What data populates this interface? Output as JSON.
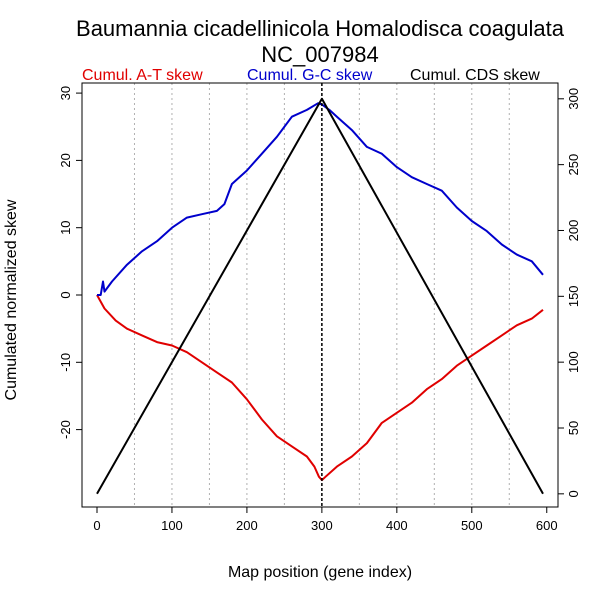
{
  "chart_data": {
    "type": "line",
    "title_line1": "Baumannia cicadellinicola Homalodisca coagulata",
    "title_line2": "NC_007984",
    "xlabel": "Map position (gene index)",
    "ylabel": "Cumulated normalized skew",
    "xlim": [
      -20,
      615
    ],
    "ylim_left": [
      -31.5,
      31.5
    ],
    "ylim_right": [
      -10,
      312
    ],
    "x_ticks": [
      0,
      100,
      200,
      300,
      400,
      500,
      600
    ],
    "y_left_ticks": [
      -20,
      -10,
      0,
      10,
      20,
      30
    ],
    "y_right_ticks": [
      0,
      50,
      100,
      150,
      200,
      250,
      300
    ],
    "vertical_gridlines": [
      50,
      100,
      150,
      200,
      250,
      300,
      350,
      400,
      450,
      500,
      550
    ],
    "grid_style": "dotted gray vertical",
    "legend": [
      {
        "label": "Cumul. A-T skew",
        "color": "#e00000"
      },
      {
        "label": "Cumul. G-C skew",
        "color": "#0000cc"
      },
      {
        "label": "Cumul. CDS skew",
        "color": "#000000"
      }
    ],
    "marker_line_x": 300,
    "series": [
      {
        "name": "Cumul. A-T skew",
        "color": "#e00000",
        "axis": "left",
        "x": [
          0,
          10,
          25,
          40,
          60,
          80,
          100,
          120,
          140,
          160,
          180,
          200,
          220,
          240,
          260,
          280,
          290,
          296,
          300,
          305,
          320,
          340,
          360,
          380,
          400,
          420,
          440,
          460,
          480,
          500,
          520,
          540,
          560,
          580,
          595
        ],
        "y": [
          0,
          -2,
          -3.8,
          -5,
          -6,
          -7,
          -7.5,
          -8.5,
          -10,
          -11.5,
          -13,
          -15.5,
          -18.5,
          -21,
          -22.5,
          -24,
          -25.5,
          -27,
          -27.5,
          -27,
          -25.5,
          -24,
          -22,
          -19,
          -17.5,
          -16,
          -14,
          -12.5,
          -10.5,
          -9,
          -7.5,
          -6,
          -4.5,
          -3.5,
          -2.2
        ]
      },
      {
        "name": "Cumul. G-C skew",
        "color": "#0000cc",
        "axis": "left",
        "x": [
          0,
          5,
          8,
          10,
          20,
          40,
          60,
          80,
          100,
          120,
          140,
          160,
          170,
          180,
          200,
          220,
          240,
          260,
          280,
          295,
          300,
          310,
          320,
          340,
          360,
          380,
          400,
          420,
          440,
          460,
          480,
          500,
          520,
          540,
          560,
          580,
          595
        ],
        "y": [
          0,
          0,
          2,
          0.5,
          2,
          4.5,
          6.5,
          8,
          10,
          11.5,
          12,
          12.5,
          13.5,
          16.5,
          18.5,
          21,
          23.5,
          26.5,
          27.5,
          28.5,
          28.3,
          27.5,
          26.5,
          24.5,
          22,
          21,
          19,
          17.5,
          16.5,
          15.5,
          13,
          11,
          9.5,
          7.5,
          6,
          5,
          3
        ]
      },
      {
        "name": "Cumul. CDS skew",
        "color": "#000000",
        "axis": "right",
        "x": [
          0,
          300,
          595
        ],
        "y": [
          0,
          300,
          0
        ]
      }
    ]
  }
}
